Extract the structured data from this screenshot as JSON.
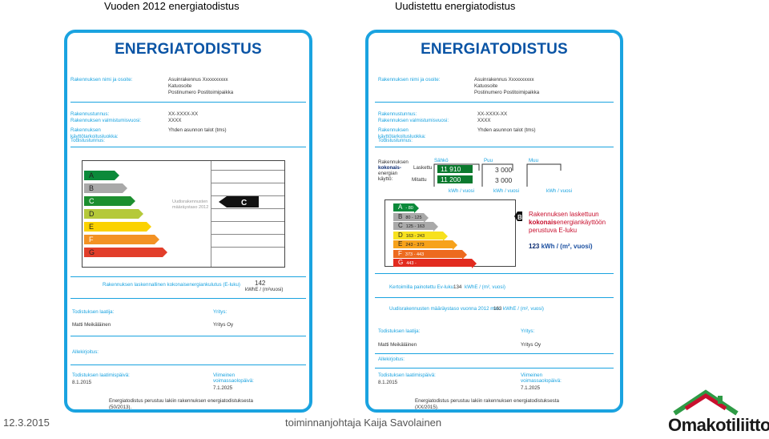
{
  "headers": {
    "left": "Vuoden 2012 energiatodistus",
    "right": "Uudistettu energiatodistus"
  },
  "left": {
    "title": "ENERGIATODISTUS",
    "name_label": "Rakennuksen nimi ja osoite:",
    "address": [
      "Asuinrakennus Xxxxxxxxxx",
      "Katuosoite",
      "Postinumero Postitoimipaikka"
    ],
    "id_label": "Rakennustunnus:",
    "id_value": "XX-XXXX-XX",
    "year_label": "Rakennuksen valmistumisvuosi:",
    "year_value": "XXXX",
    "use_label": [
      "Rakennuksen",
      "käyttötarkoitusluokka:"
    ],
    "use_value": "Yhden asunnon talot (tms)",
    "cert_label": "Todistustunnus:",
    "classes": [
      "A",
      "B",
      "C",
      "D",
      "E",
      "F",
      "G"
    ],
    "req_note": [
      "Uudisrakennusten",
      "määräystaso 2012"
    ],
    "arrow": "C",
    "eluku_label": "Rakennuksen laskennallinen kokonaisenergiankulutus (E-luku)",
    "eluku_value": "142",
    "eluku_unit": "kWhE / (m²vuosi)",
    "laatija_label": "Todistuksen laatija:",
    "laatija_value": "Matti Meikäläinen",
    "yritys_label": "Yritys:",
    "yritys_value": "Yritys Oy",
    "sign_label": "Allekirjoitus:",
    "date_label": "Todistuksen laatimispäivä:",
    "date_value": "8.1.2015",
    "valid_label": [
      "Viimeinen",
      "voimassaolopäivä:"
    ],
    "valid_value": "7.1.2025",
    "law": [
      "Energiatodistus perustuu lakiin rakennuksen energiatodistuksesta",
      "(50/2013)."
    ]
  },
  "right": {
    "title": "ENERGIATODISTUS",
    "name_label": "Rakennuksen nimi ja osoite:",
    "address": [
      "Asuinrakennus Xxxxxxxxxx",
      "Katuosoite",
      "Postinumero Postitoimipaikka"
    ],
    "id_label": "Rakennustunnus:",
    "id_value": "XX-XXXX-XX",
    "year_label": "Rakennuksen valmistumisvuosi:",
    "year_value": "XXXX",
    "use_label": [
      "Rakennuksen",
      "käyttötarkoitusluokka:"
    ],
    "use_value": "Yhden asunnon talot (tms)",
    "cert_label": "Todistustunnus:",
    "total_label": [
      "Rakennuksen",
      "kokonais-",
      "energian",
      "käyttö:"
    ],
    "calc_label": "Laskettu",
    "meas_label": "Mitattu",
    "cols": [
      "Sähkö",
      "Puu",
      "Muu"
    ],
    "sahko_calc": "11 910",
    "sahko_meas": "11 200",
    "puu_calc": "3 000",
    "puu_meas": "3 000",
    "unit": "kWh / vuosi",
    "classes": [
      {
        "letter": "A",
        "range": "- 80"
      },
      {
        "letter": "B",
        "range": "80 - 125"
      },
      {
        "letter": "C",
        "range": "125 - 163"
      },
      {
        "letter": "D",
        "range": "163 - 243"
      },
      {
        "letter": "E",
        "range": "243 - 373"
      },
      {
        "letter": "F",
        "range": "373 - 443"
      },
      {
        "letter": "G",
        "range": "443 -"
      }
    ],
    "arrow": "B",
    "side_text": [
      "Rakennuksen laskettuun",
      "kokonais",
      "energiankäyttöön",
      "perustuva E-luku"
    ],
    "side_value": "123",
    "side_unit": "kWh / (m², vuosi)",
    "weighted_label": "Kertoimilla painotettu Ev-luku",
    "weighted_value": "134",
    "weighted_unit": "kWhE / (m², vuosi)",
    "req_label": "Uudisrakennusten määräystaso vuonna 2012 max.",
    "req_value": "163",
    "req_unit": "kWhE / (m², vuosi)",
    "laatija_label": "Todistuksen laatija:",
    "laatija_value": "Matti Meikäläinen",
    "yritys_label": "Yritys:",
    "yritys_value": "Yritys Oy",
    "sign_label": "Allekirjoitus:",
    "date_label": "Todistuksen laatimispäivä:",
    "date_value": "8.1.2015",
    "valid_label": [
      "Viimeinen",
      "voimassaolopäivä:"
    ],
    "valid_value": "7.1.2025",
    "law": [
      "Energiatodistus perustuu lakiin rakennuksen energiatodistuksesta",
      "(XX/2015)."
    ]
  },
  "footer": {
    "date": "12.3.2015",
    "presenter": "toiminnanjohtaja Kaija Savolainen",
    "logo": "Omakotiliitto"
  },
  "colors": {
    "frame": "#1aa3e0",
    "title": "#0a54a5",
    "classes": [
      "#0b8a3a",
      "#7dbb42",
      "#c9d84a",
      "#f7e11e",
      "#f7a21b",
      "#ed6a1f",
      "#e22b1f"
    ],
    "classes_old": [
      "#0b8a3a",
      "#a9a9a9",
      "#1c8f2f",
      "#b5c93a",
      "#fbd200",
      "#f39224",
      "#e23e2a"
    ]
  }
}
